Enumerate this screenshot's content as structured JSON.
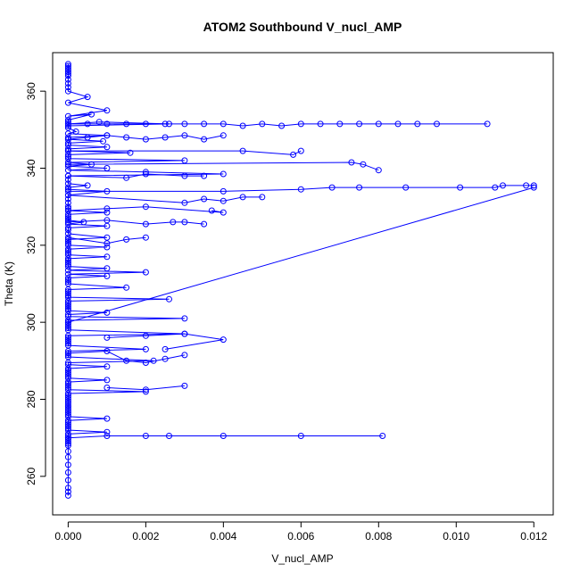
{
  "chart_data": {
    "type": "scatter",
    "title": "ATOM2 Southbound V_nucl_AMP",
    "xlabel": "V_nucl_AMP",
    "ylabel": "Theta (K)",
    "xlim": [
      -0.0004,
      0.0125
    ],
    "ylim": [
      250,
      370
    ],
    "xticks": [
      0.0,
      0.002,
      0.004,
      0.006,
      0.008,
      0.01,
      0.012
    ],
    "xtick_labels": [
      "0.000",
      "0.002",
      "0.004",
      "0.006",
      "0.008",
      "0.010",
      "0.012"
    ],
    "yticks": [
      260,
      280,
      300,
      320,
      340,
      360
    ],
    "ytick_labels": [
      "260",
      "280",
      "300",
      "320",
      "340",
      "360"
    ],
    "grid": false,
    "series": [
      {
        "color": "#0000ff",
        "marker": "open-circle",
        "line": true,
        "x": [
          0.0,
          0.0,
          0.0,
          0.0,
          0.0,
          0.0,
          0.0,
          0.0,
          0.0,
          0.0,
          0.0,
          0.0005,
          0.0,
          0.001,
          0.0,
          0.0006,
          0.0,
          0.0,
          0.0,
          0.0008,
          0.0026,
          0.0,
          0.0,
          0.0002,
          0.0,
          0.001,
          0.0,
          0.0,
          0.0009,
          0.0,
          0.0,
          0.001,
          0.0,
          0.0,
          0.0016,
          0.0,
          0.0,
          0.0,
          0.003,
          0.0,
          0.0006,
          0.0,
          0.001,
          0.0,
          0.002,
          0.004,
          0.0,
          0.0,
          0.0,
          0.0005,
          0.0,
          0.0,
          0.001,
          0.0,
          0.0,
          0.0,
          0.0,
          0.0,
          0.0,
          0.001,
          0.0,
          0.0,
          0.0,
          0.0,
          0.0004,
          0.0,
          0.001,
          0.0,
          0.0,
          0.0,
          0.001,
          0.0,
          0.0,
          0.0,
          0.0,
          0.001,
          0.0,
          0.0,
          0.0,
          0.0,
          0.001,
          0.0,
          0.0,
          0.0,
          0.0,
          0.0,
          0.001,
          0.0,
          0.002,
          0.0,
          0.001,
          0.0,
          0.0,
          0.0,
          0.0,
          0.0015,
          0.0,
          0.0,
          0.0,
          0.0,
          0.0,
          0.0026,
          0.0,
          0.0,
          0.0,
          0.0,
          0.0,
          0.0,
          0.001,
          0.0,
          0.0,
          0.003,
          0.0,
          0.0,
          0.0,
          0.0,
          0.0,
          0.0,
          0.003,
          0.0,
          0.0,
          0.0,
          0.0,
          0.0,
          0.0,
          0.002,
          0.0,
          0.0,
          0.0,
          0.0,
          0.0022,
          0.0,
          0.0,
          0.001,
          0.0,
          0.0,
          0.0,
          0.0,
          0.0,
          0.0,
          0.001,
          0.0,
          0.0,
          0.0,
          0.0,
          0.0,
          0.002,
          0.0,
          0.0,
          0.0,
          0.0,
          0.0,
          0.0,
          0.0,
          0.0,
          0.0,
          0.0,
          0.0,
          0.0,
          0.0,
          0.001,
          0.0,
          0.0,
          0.0,
          0.0,
          0.0,
          0.0,
          0.001,
          0.0,
          0.0,
          0.0,
          0.0,
          0.0,
          0.0,
          0.0,
          0.0,
          0.0,
          0.0,
          0.0,
          0.0,
          0.0,
          0.0,
          0.0
        ],
        "y": [
          367.0,
          366.5,
          366.0,
          365.5,
          365.0,
          364.5,
          364.0,
          363.0,
          362.0,
          361.0,
          360.0,
          358.5,
          357.0,
          355.0,
          353.5,
          354.0,
          352.5,
          352.0,
          351.5,
          352.0,
          351.5,
          351.0,
          350.5,
          349.5,
          349.0,
          348.5,
          348.0,
          347.5,
          347.0,
          346.5,
          346.0,
          345.5,
          345.0,
          344.5,
          344.0,
          343.5,
          343.0,
          342.5,
          342.0,
          341.5,
          341.0,
          340.5,
          340.0,
          339.5,
          339.0,
          338.5,
          338.0,
          337.0,
          336.0,
          335.5,
          335.0,
          334.5,
          334.0,
          333.0,
          332.0,
          331.0,
          330.0,
          329.5,
          329.0,
          328.5,
          328.0,
          327.5,
          327.0,
          326.5,
          326.0,
          325.5,
          325.0,
          324.5,
          324.0,
          323.0,
          322.0,
          321.5,
          321.0,
          320.5,
          320.0,
          319.5,
          319.0,
          318.5,
          318.0,
          317.5,
          317.0,
          316.5,
          316.0,
          315.5,
          315.0,
          314.5,
          314.0,
          313.5,
          313.0,
          312.5,
          312.0,
          311.5,
          311.0,
          310.5,
          310.0,
          309.0,
          308.5,
          308.0,
          307.5,
          307.0,
          306.5,
          306.0,
          305.5,
          305.0,
          304.5,
          304.0,
          303.5,
          303.0,
          302.5,
          302.0,
          301.5,
          301.0,
          300.5,
          300.0,
          299.5,
          299.0,
          298.5,
          298.0,
          297.0,
          296.5,
          296.0,
          295.5,
          295.0,
          294.5,
          294.0,
          293.0,
          292.5,
          292.0,
          291.5,
          291.0,
          290.0,
          289.5,
          289.0,
          288.5,
          288.0,
          287.5,
          287.0,
          286.5,
          286.0,
          285.5,
          285.0,
          284.5,
          284.0,
          283.5,
          283.0,
          282.5,
          282.0,
          281.5,
          281.0,
          280.5,
          280.0,
          279.5,
          279.0,
          278.5,
          278.0,
          277.5,
          277.0,
          276.5,
          276.0,
          275.5,
          275.0,
          274.5,
          274.0,
          273.5,
          273.0,
          272.5,
          272.0,
          271.5,
          271.0,
          270.5,
          270.0,
          269.5,
          269.0,
          268.5,
          268.0,
          266.5,
          265.0,
          263.0,
          261.0,
          259.0,
          257.0,
          256.0,
          255.0
        ]
      },
      {
        "color": "#0000ff",
        "marker": "open-circle",
        "line": true,
        "x": [
          0.0,
          0.0005,
          0.001,
          0.0015,
          0.002,
          0.0025,
          0.003,
          0.0035,
          0.004,
          0.0045,
          0.005,
          0.0055,
          0.006,
          0.0065,
          0.007,
          0.0075,
          0.008,
          0.0085,
          0.009,
          0.0095,
          0.0108
        ],
        "y": [
          351.5,
          351.5,
          351.5,
          351.5,
          351.5,
          351.5,
          351.5,
          351.5,
          351.5,
          351.0,
          351.5,
          351.0,
          351.5,
          351.5,
          351.5,
          351.5,
          351.5,
          351.5,
          351.5,
          351.5,
          351.5
        ]
      },
      {
        "color": "#0000ff",
        "marker": "open-circle",
        "line": true,
        "x": [
          0.0,
          0.004,
          0.006,
          0.0068,
          0.0075,
          0.0087,
          0.0101,
          0.011,
          0.0112,
          0.0118,
          0.012
        ],
        "y": [
          334.0,
          334.0,
          334.5,
          335.0,
          335.0,
          335.0,
          335.0,
          335.0,
          335.5,
          335.5,
          335.5
        ]
      },
      {
        "color": "#0000ff",
        "marker": "open-circle",
        "line": true,
        "x": [
          0.0,
          0.012
        ],
        "y": [
          300.0,
          335.0
        ]
      },
      {
        "color": "#0000ff",
        "marker": "open-circle",
        "line": true,
        "x": [
          0.0,
          0.001,
          0.002,
          0.0026,
          0.004,
          0.006,
          0.0081
        ],
        "y": [
          270.0,
          270.5,
          270.5,
          270.5,
          270.5,
          270.5,
          270.5
        ]
      },
      {
        "color": "#0000ff",
        "marker": "open-circle",
        "line": true,
        "x": [
          0.0,
          0.0045,
          0.0058,
          0.006
        ],
        "y": [
          344.5,
          344.5,
          343.5,
          344.5
        ]
      },
      {
        "color": "#0000ff",
        "marker": "open-circle",
        "line": true,
        "x": [
          0.0,
          0.0073,
          0.0076,
          0.008
        ],
        "y": [
          341.0,
          341.5,
          341.0,
          339.5
        ]
      },
      {
        "color": "#0000ff",
        "marker": "open-circle",
        "line": true,
        "x": [
          0.0,
          0.003,
          0.0035,
          0.004,
          0.0045,
          0.005
        ],
        "y": [
          333.0,
          331.0,
          332.0,
          331.5,
          332.5,
          332.5
        ]
      },
      {
        "color": "#0000ff",
        "marker": "open-circle",
        "line": true,
        "x": [
          0.001,
          0.002,
          0.003,
          0.004,
          0.0025
        ],
        "y": [
          296.0,
          296.5,
          297.0,
          295.5,
          293.0
        ]
      },
      {
        "color": "#0000ff",
        "marker": "open-circle",
        "line": true,
        "x": [
          0.001,
          0.002,
          0.003
        ],
        "y": [
          283.0,
          282.5,
          283.5
        ]
      },
      {
        "color": "#0000ff",
        "marker": "open-circle",
        "line": true,
        "x": [
          0.0,
          0.001,
          0.0015,
          0.002,
          0.0025,
          0.003
        ],
        "y": [
          292.0,
          292.5,
          290.0,
          289.5,
          290.5,
          291.5
        ]
      },
      {
        "color": "#0000ff",
        "marker": "open-circle",
        "line": true,
        "x": [
          0.0,
          0.0005,
          0.001,
          0.0015,
          0.002,
          0.0025,
          0.003,
          0.0035,
          0.004
        ],
        "y": [
          347.5,
          348.0,
          348.5,
          348.0,
          347.5,
          348.0,
          348.5,
          347.5,
          348.5
        ]
      },
      {
        "color": "#0000ff",
        "marker": "open-circle",
        "line": true,
        "x": [
          0.0,
          0.001,
          0.002,
          0.0027,
          0.003,
          0.0035
        ],
        "y": [
          326.0,
          326.5,
          325.5,
          326.0,
          326.0,
          325.5
        ]
      },
      {
        "color": "#0000ff",
        "marker": "open-circle",
        "line": true,
        "x": [
          0.0,
          0.001,
          0.002,
          0.004,
          0.0037
        ],
        "y": [
          329.0,
          329.5,
          330.0,
          328.5,
          329.0
        ]
      },
      {
        "color": "#0000ff",
        "marker": "open-circle",
        "line": true,
        "x": [
          0.0,
          0.0015,
          0.002,
          0.003,
          0.0035
        ],
        "y": [
          338.0,
          337.5,
          338.5,
          338.0,
          338.0
        ]
      },
      {
        "color": "#0000ff",
        "marker": "open-circle",
        "line": true,
        "x": [
          0.0,
          0.001,
          0.0015,
          0.002
        ],
        "y": [
          322.0,
          320.5,
          321.5,
          322.0
        ]
      }
    ]
  }
}
